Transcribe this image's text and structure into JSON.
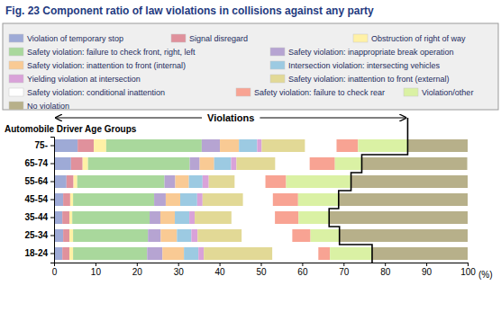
{
  "chart_data": {
    "type": "bar",
    "orientation": "horizontal",
    "stacked": true,
    "title": "Fig. 23  Component ratio of law violations in collisions against any party",
    "y_label": "Automobile Driver Age Groups",
    "x_label": "(%)",
    "annotations": [
      "Violations"
    ],
    "legend": "top",
    "grid": false,
    "categories": [
      "75-",
      "65-74",
      "55-64",
      "45-54",
      "35-44",
      "25-34",
      "18-24"
    ],
    "xlim": [
      0,
      100
    ],
    "xticks": [
      0,
      10,
      20,
      30,
      40,
      50,
      60,
      70,
      80,
      90,
      100
    ],
    "series": [
      {
        "name": "Violation of temporary stop",
        "color": "#9eaad6",
        "values": [
          5.7,
          4.1,
          3.0,
          2.2,
          2.0,
          2.2,
          2.0
        ]
      },
      {
        "name": "Signal disregard",
        "color": "#e0919c",
        "values": [
          3.9,
          2.8,
          1.7,
          1.7,
          1.7,
          1.5,
          1.7
        ]
      },
      {
        "name": "Obstruction of right of way",
        "color": "#fff1a6",
        "values": [
          3.0,
          1.3,
          0.9,
          0.7,
          0.7,
          0.9,
          0.9
        ]
      },
      {
        "name": "Safety violation: failure to check front, right, left",
        "color": "#a9d89c",
        "values": [
          23.1,
          24.6,
          21.1,
          19.6,
          18.7,
          18.1,
          17.9
        ]
      },
      {
        "name": "Safety violation: inappropriate break operation",
        "color": "#b6a4d2",
        "values": [
          4.4,
          2.4,
          2.6,
          2.8,
          2.6,
          3.1,
          3.7
        ]
      },
      {
        "name": "Safety violation: inattention to front (internal)",
        "color": "#f9ca94",
        "values": [
          4.6,
          3.5,
          3.3,
          3.5,
          3.5,
          3.9,
          5.2
        ]
      },
      {
        "name": "Intersection violation: intersecting vehicles",
        "color": "#9ccae2",
        "values": [
          4.4,
          4.1,
          3.3,
          4.1,
          3.5,
          3.5,
          3.5
        ]
      },
      {
        "name": "Yielding violation at intersection",
        "color": "#d9a2d9",
        "values": [
          1.1,
          1.3,
          1.5,
          1.3,
          1.3,
          1.5,
          1.3
        ]
      },
      {
        "name": "Safety violation: inattention to front (external)",
        "color": "#e2d996",
        "values": [
          10.5,
          9.4,
          6.3,
          9.8,
          8.9,
          10.7,
          16.6
        ]
      },
      {
        "name": "Safety violation: conditional inattention",
        "color": "#ffffff",
        "values": [
          7.6,
          8.3,
          7.4,
          7.2,
          10.5,
          12.2,
          11.1
        ]
      },
      {
        "name": "Safety violation: failure to check rear",
        "color": "#f8a393",
        "values": [
          5.2,
          6.1,
          5.0,
          6.1,
          5.7,
          4.4,
          2.8
        ]
      },
      {
        "name": "Violation/other",
        "color": "#daf1a4",
        "values": [
          12.0,
          6.5,
          15.7,
          9.8,
          7.4,
          7.0,
          10.2
        ]
      },
      {
        "name": "No violation",
        "color": "#b7b08a",
        "values": [
          14.5,
          25.5,
          28.2,
          31.2,
          33.5,
          31.0,
          23.1
        ]
      }
    ]
  }
}
